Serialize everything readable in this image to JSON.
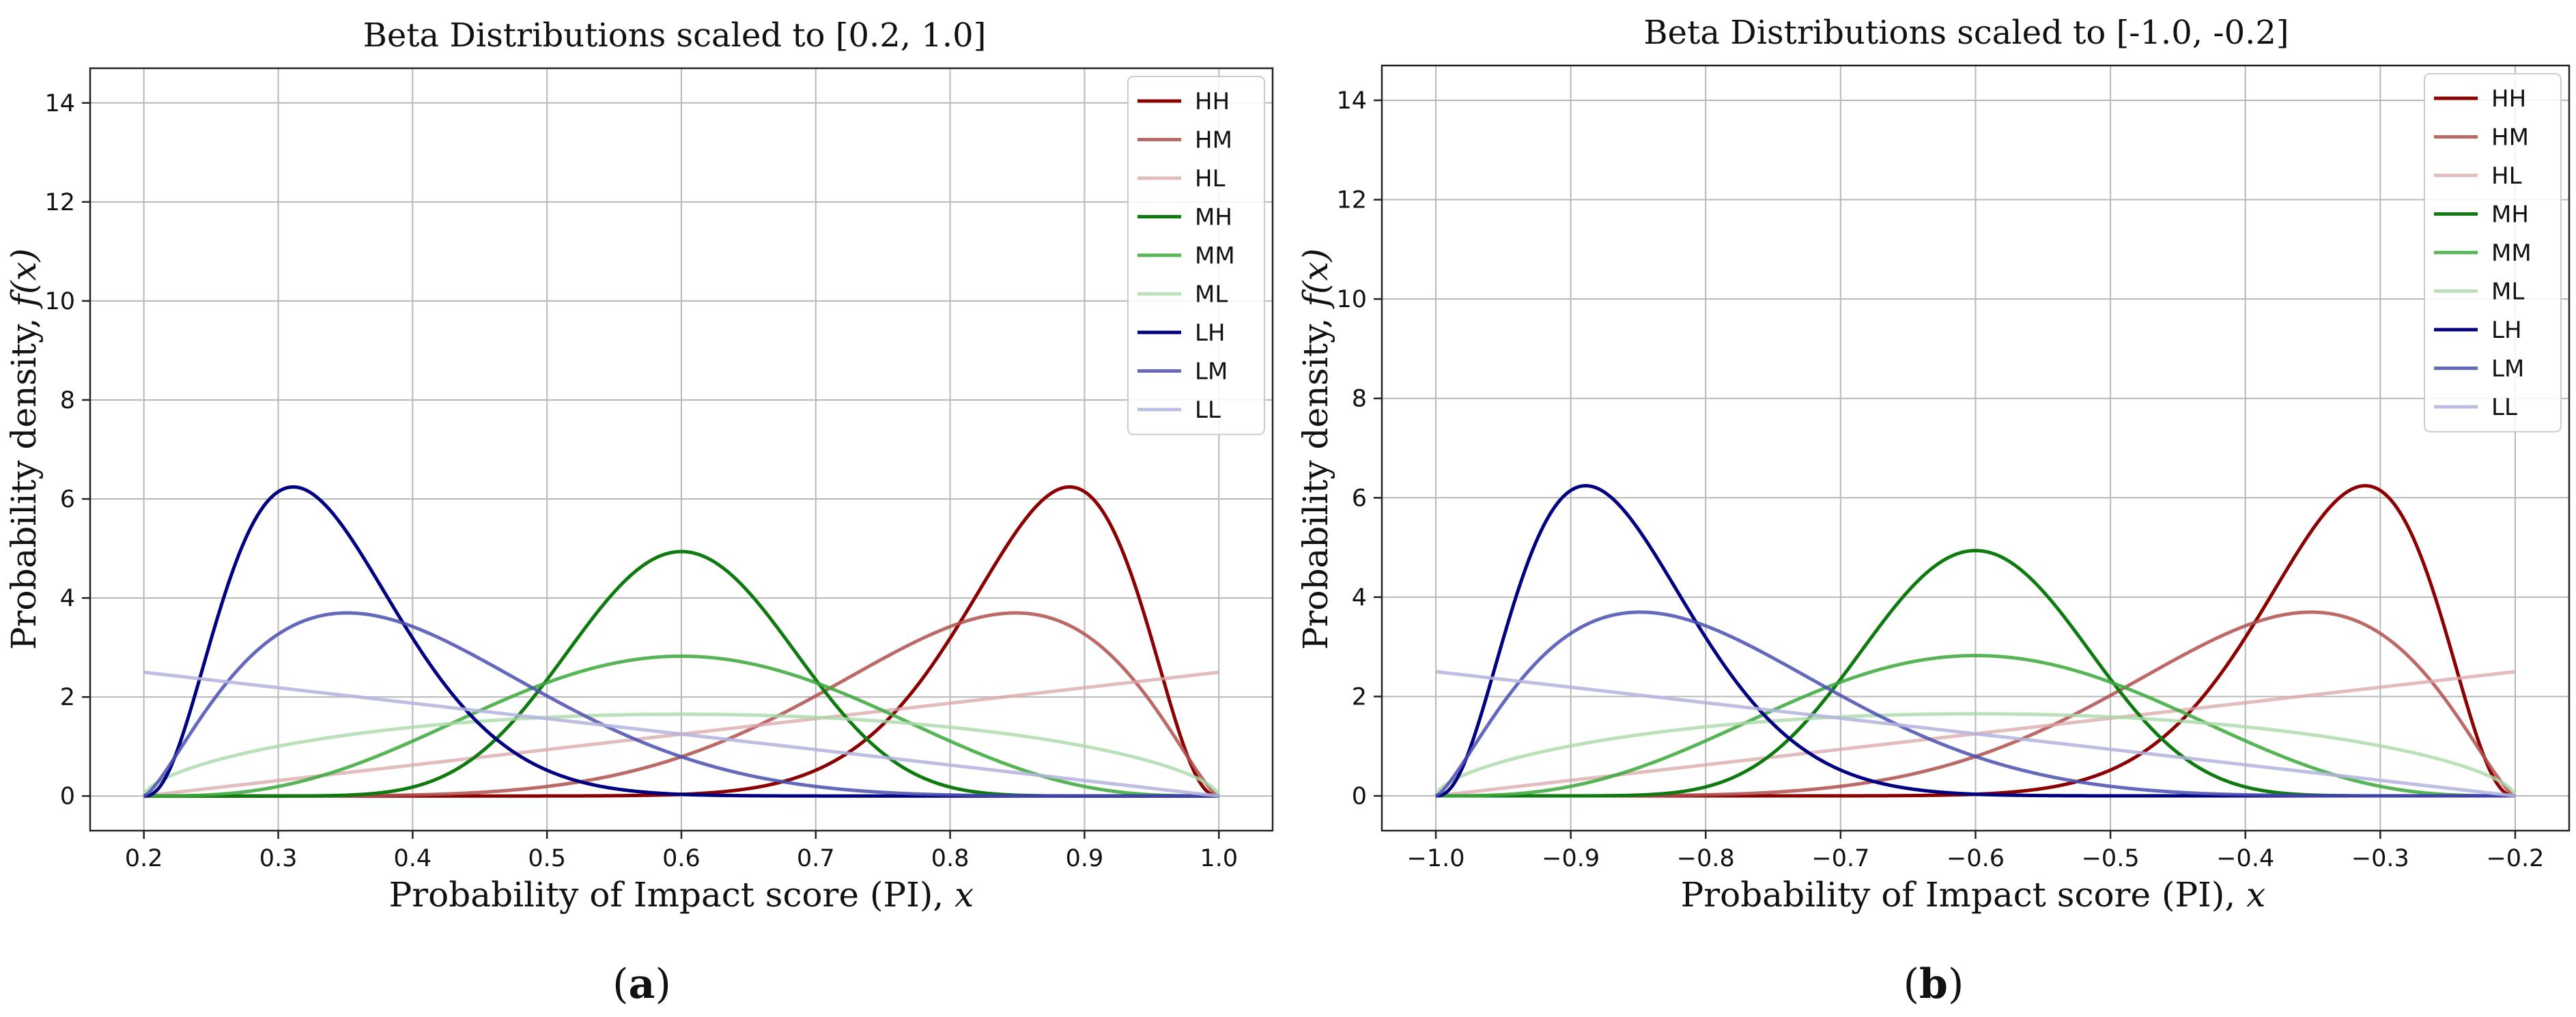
{
  "chart_data": [
    {
      "type": "line",
      "title": "Beta Distributions scaled to [0.2, 1.0]",
      "xlabel": "Probability of Impact score (PI), x",
      "xlabel_main": "Probability of Impact score (PI),",
      "xlabel_var": "x",
      "ylabel": "Probability density, f(x)",
      "ylabel_main": "Probability density,",
      "ylabel_var": "f(x)",
      "subfig_label": "(a)",
      "subfig_letter": "a",
      "scale_range": [
        0.2,
        1.0
      ],
      "xlim": [
        0.16,
        1.04
      ],
      "ylim": [
        -0.7,
        14.7
      ],
      "xticks": [
        0.2,
        0.3,
        0.4,
        0.5,
        0.6,
        0.7,
        0.8,
        0.9,
        1.0
      ],
      "xtick_labels": [
        "0.2",
        "0.3",
        "0.4",
        "0.5",
        "0.6",
        "0.7",
        "0.8",
        "0.9",
        "1.0"
      ],
      "yticks": [
        0,
        2,
        4,
        6,
        8,
        10,
        12,
        14
      ],
      "ytick_labels": [
        "0",
        "2",
        "4",
        "6",
        "8",
        "10",
        "12",
        "14"
      ],
      "grid": true,
      "legend_position": "top-right",
      "series": [
        {
          "name": "HH",
          "alpha": 16.5,
          "beta": 3.5,
          "color": "#8b0000",
          "opacity": 1.0
        },
        {
          "name": "HM",
          "alpha": 7.0,
          "beta": 2.4,
          "color": "#b0504e",
          "opacity": 0.85
        },
        {
          "name": "HL",
          "alpha": 2.0,
          "beta": 1.0,
          "color": "#d9a5a8",
          "opacity": 0.75
        },
        {
          "name": "MH",
          "alpha": 12.5,
          "beta": 12.5,
          "color": "#0f7a0f",
          "opacity": 1.0
        },
        {
          "name": "MM",
          "alpha": 4.25,
          "beta": 4.25,
          "color": "#3aa83a",
          "opacity": 0.85
        },
        {
          "name": "ML",
          "alpha": 1.6,
          "beta": 1.6,
          "color": "#a9d9a9",
          "opacity": 0.8
        },
        {
          "name": "LH",
          "alpha": 3.5,
          "beta": 16.5,
          "color": "#000080",
          "opacity": 1.0
        },
        {
          "name": "LM",
          "alpha": 2.4,
          "beta": 7.0,
          "color": "#4a4fb0",
          "opacity": 0.85
        },
        {
          "name": "LL",
          "alpha": 1.0,
          "beta": 2.0,
          "color": "#b3b3dd",
          "opacity": 0.85
        }
      ]
    },
    {
      "type": "line",
      "title": "Beta Distributions scaled to [-1.0, -0.2]",
      "xlabel": "Probability of Impact score (PI), x",
      "xlabel_main": "Probability of Impact score (PI),",
      "xlabel_var": "x",
      "ylabel": "Probability density, f(x)",
      "ylabel_main": "Probability density,",
      "ylabel_var": "f(x)",
      "subfig_label": "(b)",
      "subfig_letter": "b",
      "scale_range": [
        -1.0,
        -0.2
      ],
      "xlim": [
        -1.04,
        -0.16
      ],
      "ylim": [
        -0.7,
        14.7
      ],
      "xticks": [
        -1.0,
        -0.9,
        -0.8,
        -0.7,
        -0.6,
        -0.5,
        -0.4,
        -0.3,
        -0.2
      ],
      "xtick_labels": [
        "−1.0",
        "−0.9",
        "−0.8",
        "−0.7",
        "−0.6",
        "−0.5",
        "−0.4",
        "−0.3",
        "−0.2"
      ],
      "yticks": [
        0,
        2,
        4,
        6,
        8,
        10,
        12,
        14
      ],
      "ytick_labels": [
        "0",
        "2",
        "4",
        "6",
        "8",
        "10",
        "12",
        "14"
      ],
      "grid": true,
      "legend_position": "top-right",
      "series": [
        {
          "name": "HH",
          "alpha": 16.5,
          "beta": 3.5,
          "color": "#8b0000",
          "opacity": 1.0
        },
        {
          "name": "HM",
          "alpha": 7.0,
          "beta": 2.4,
          "color": "#b0504e",
          "opacity": 0.85
        },
        {
          "name": "HL",
          "alpha": 2.0,
          "beta": 1.0,
          "color": "#d9a5a8",
          "opacity": 0.75
        },
        {
          "name": "MH",
          "alpha": 12.5,
          "beta": 12.5,
          "color": "#0f7a0f",
          "opacity": 1.0
        },
        {
          "name": "MM",
          "alpha": 4.25,
          "beta": 4.25,
          "color": "#3aa83a",
          "opacity": 0.85
        },
        {
          "name": "ML",
          "alpha": 1.6,
          "beta": 1.6,
          "color": "#a9d9a9",
          "opacity": 0.8
        },
        {
          "name": "LH",
          "alpha": 3.5,
          "beta": 16.5,
          "color": "#000080",
          "opacity": 1.0
        },
        {
          "name": "LM",
          "alpha": 2.4,
          "beta": 7.0,
          "color": "#4a4fb0",
          "opacity": 0.85
        },
        {
          "name": "LL",
          "alpha": 1.0,
          "beta": 2.0,
          "color": "#b3b3dd",
          "opacity": 0.85
        }
      ]
    }
  ]
}
